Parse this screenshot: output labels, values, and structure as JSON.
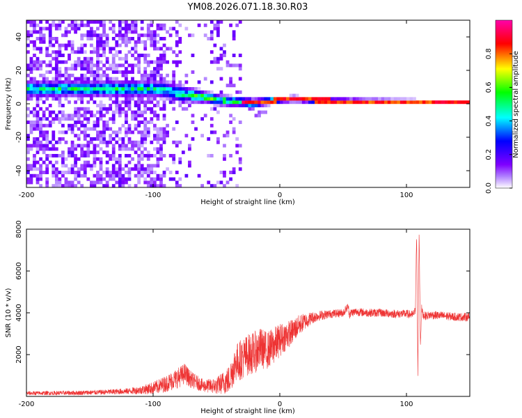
{
  "title": "YM08.2026.071.18.30.R03",
  "colors": {
    "snr_line": "#ee3333",
    "frame": "#000000"
  },
  "chart_data": [
    {
      "type": "heatmap",
      "xlabel": "Height of straight line (km)",
      "ylabel": "Frequency (Hz)",
      "xlim": [
        -200,
        150
      ],
      "ylim": [
        -50,
        50
      ],
      "x_ticks": [
        -200,
        -100,
        0,
        100
      ],
      "y_ticks": [
        -40,
        -20,
        0,
        20,
        40
      ],
      "grid": false,
      "description_of_data": {
        "band_center_hz": [
          [
            -100,
            8
          ],
          [
            -90,
            7
          ],
          [
            -80,
            5
          ],
          [
            -70,
            4
          ],
          [
            -60,
            3
          ],
          [
            -50,
            1.5
          ],
          [
            -40,
            0.5
          ],
          [
            -30,
            0
          ],
          [
            -20,
            -0.5
          ],
          [
            -10,
            0.5
          ],
          [
            0,
            1.5
          ],
          [
            10,
            2
          ],
          [
            20,
            1.5
          ],
          [
            30,
            1
          ],
          [
            50,
            0.5
          ],
          [
            100,
            0.3
          ],
          [
            150,
            0.2
          ]
        ],
        "band_halfwidth_hz": [
          [
            -100,
            4
          ],
          [
            -80,
            4
          ],
          [
            -60,
            3
          ],
          [
            -40,
            2.5
          ],
          [
            -20,
            2
          ],
          [
            0,
            1.5
          ],
          [
            150,
            1
          ]
        ],
        "noise_region_km": [
          -200,
          -30
        ],
        "peak_amplitude_region_km": [
          -30,
          150
        ]
      },
      "colorbar": {
        "label": "Normalized spectral amplitude",
        "range": [
          0,
          1
        ],
        "ticks": [
          0.0,
          0.2,
          0.4,
          0.6,
          0.8
        ],
        "tick_labels": [
          "0.0",
          "0.2",
          "0.4",
          "0.6",
          "0.8"
        ],
        "colormap": [
          "#ffffff",
          "#7f00ff",
          "#0000ff",
          "#00ffff",
          "#00ff00",
          "#ffff00",
          "#ff0000",
          "#ff00aa"
        ]
      }
    },
    {
      "type": "line",
      "xlabel": "Height of straight line (km)",
      "ylabel": "SNR (10 * v/v)",
      "xlim": [
        -200,
        150
      ],
      "ylim": [
        0,
        8000
      ],
      "x_ticks": [
        -200,
        -100,
        0,
        100
      ],
      "y_ticks": [
        2000,
        4000,
        6000,
        8000
      ],
      "grid": false,
      "series": [
        {
          "x": [
            -200,
            -180,
            -160,
            -140,
            -120,
            -110,
            -100,
            -90,
            -80,
            -75,
            -70,
            -60,
            -50,
            -40,
            -35,
            -30,
            -25,
            -20,
            -15,
            -10,
            -5,
            0,
            5,
            10,
            15,
            20,
            25,
            30,
            40,
            50,
            54,
            55,
            56,
            60,
            70,
            80,
            90,
            100,
            105,
            107,
            108,
            109,
            110,
            111,
            112,
            113,
            115,
            120,
            130,
            140,
            150
          ],
          "y": [
            150,
            160,
            170,
            200,
            250,
            300,
            400,
            600,
            900,
            1100,
            800,
            500,
            500,
            800,
            1600,
            1800,
            2000,
            2100,
            2300,
            2200,
            2400,
            2700,
            2900,
            3100,
            3400,
            3600,
            3750,
            3850,
            3950,
            4000,
            4300,
            3900,
            4000,
            4050,
            4000,
            4000,
            3950,
            3950,
            3900,
            4100,
            7800,
            1000,
            8000,
            2400,
            4200,
            3900,
            3850,
            3900,
            3850,
            3800,
            3800
          ],
          "noise_amplitude": [
            100,
            100,
            110,
            120,
            150,
            200,
            300,
            400,
            500,
            500,
            400,
            300,
            400,
            700,
            900,
            1000,
            1000,
            1000,
            1000,
            900,
            900,
            800,
            700,
            600,
            500,
            400,
            300,
            250,
            200,
            200,
            200,
            200,
            200,
            200,
            200,
            200,
            200,
            200,
            200,
            200,
            200,
            200,
            200,
            200,
            200,
            200,
            200,
            200,
            200,
            200,
            200
          ]
        }
      ]
    }
  ]
}
